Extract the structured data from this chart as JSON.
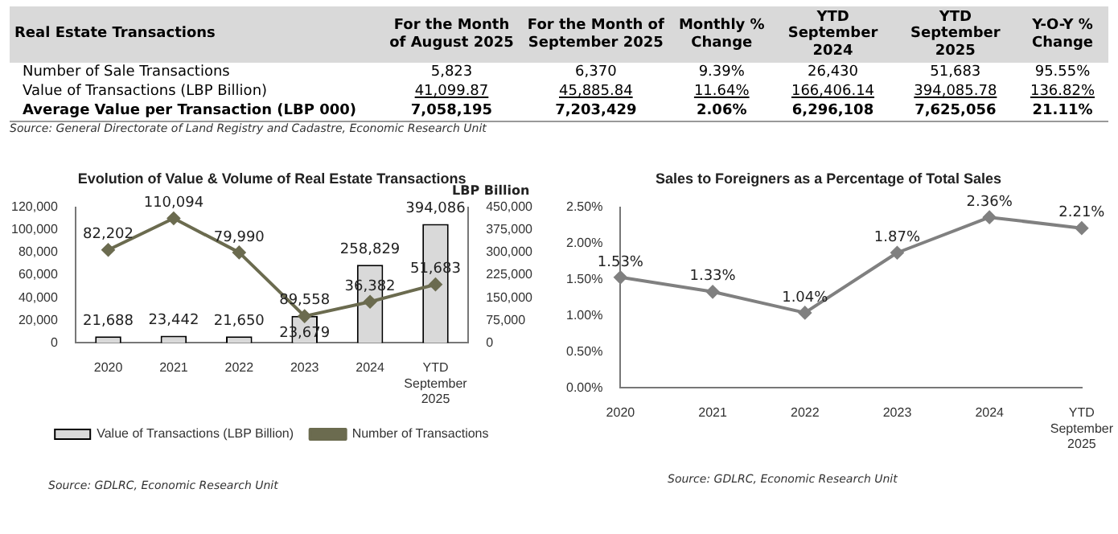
{
  "chart_data": [
    {
      "type": "other",
      "title": "Real Estate Transactions",
      "categories": [
        "Number of Sale Transactions",
        "Value of Transactions (LBP Billion)",
        "Average Value per Transaction (LBP 000)"
      ],
      "series": [
        {
          "name": "For the Month of August 2025",
          "values": [
            5823,
            41099.87,
            7058195
          ],
          "value_labels": [
            "5,823",
            "41,099.87",
            "7,058,195"
          ]
        },
        {
          "name": "For the Month of September 2025",
          "values": [
            6370,
            45885.84,
            7203429
          ],
          "value_labels": [
            "6,370",
            "45,885.84",
            "7,203,429"
          ]
        },
        {
          "name": "Monthly % Change",
          "values": [
            9.39,
            11.64,
            2.06
          ],
          "value_labels": [
            "9.39%",
            "11.64%",
            "2.06%"
          ]
        },
        {
          "name": "YTD September 2024",
          "values": [
            26430,
            166406.14,
            6296108
          ],
          "value_labels": [
            "26,430",
            "166,406.14",
            "6,296,108"
          ]
        },
        {
          "name": "YTD September 2025",
          "values": [
            51683,
            394085.78,
            7625056
          ],
          "value_labels": [
            "51,683",
            "394,085.78",
            "7,625,056"
          ]
        },
        {
          "name": "Y-O-Y % Change",
          "values": [
            95.55,
            136.82,
            21.11
          ],
          "value_labels": [
            "95.55%",
            "136.82%",
            "21.11%"
          ]
        }
      ],
      "annotations": [
        "Source: General Directorate of Land Registry and Cadastre, Economic Research Unit"
      ]
    },
    {
      "type": "bar",
      "title": "Evolution of Value & Volume of Real Estate Transactions",
      "categories": [
        "2020",
        "2021",
        "2022",
        "2023",
        "2024",
        "YTD September 2025"
      ],
      "series": [
        {
          "name": "Value of Transactions (LBP Billion)",
          "color": "#d9d9d9",
          "axis": "y2",
          "values": [
            21688,
            23442,
            21650,
            89558,
            258829,
            394086
          ],
          "value_labels": [
            "21,688",
            "23,442",
            "21,650",
            "89,558",
            "258,829",
            "394,086"
          ]
        },
        {
          "name": "Number of Transactions",
          "type": "line",
          "color": "#6b6b4f",
          "values": [
            82202,
            110094,
            79990,
            23679,
            36382,
            51683
          ],
          "value_labels": [
            "82,202",
            "110,094",
            "79,990",
            "23,679",
            "36,382",
            "51,683"
          ]
        }
      ],
      "ylim": [
        0,
        120000
      ],
      "yticks": [
        {
          "value": 0,
          "label": "0"
        },
        {
          "value": 20000,
          "label": "20,000"
        },
        {
          "value": 40000,
          "label": "40,000"
        },
        {
          "value": 60000,
          "label": "60,000"
        },
        {
          "value": 80000,
          "label": "80,000"
        },
        {
          "value": 100000,
          "label": "100,000"
        },
        {
          "value": 120000,
          "label": "120,000"
        }
      ],
      "y2label": "LBP Billion",
      "y2lim": [
        0,
        450000
      ],
      "y2ticks": [
        {
          "value": 0,
          "label": "0"
        },
        {
          "value": 75000,
          "label": "75,000"
        },
        {
          "value": 150000,
          "label": "150,000"
        },
        {
          "value": 225000,
          "label": "225,000"
        },
        {
          "value": 300000,
          "label": "300,000"
        },
        {
          "value": 375000,
          "label": "375,000"
        },
        {
          "value": 450000,
          "label": "450,000"
        }
      ],
      "marker": "diamond",
      "legend": "bottom",
      "annotations": [
        "Source: GDLRC, Economic Research Unit"
      ]
    },
    {
      "type": "line",
      "title": "Sales to Foreigners as a Percentage of Total Sales",
      "categories": [
        "2020",
        "2021",
        "2022",
        "2023",
        "2024",
        "YTD September 2025"
      ],
      "series": [
        {
          "color": "#808080",
          "values": [
            1.53,
            1.33,
            1.04,
            1.87,
            2.36,
            2.21
          ],
          "value_labels": [
            "1.53%",
            "1.33%",
            "1.04%",
            "1.87%",
            "2.36%",
            "2.21%"
          ]
        }
      ],
      "ylim": [
        0,
        2.5
      ],
      "yticks": [
        {
          "value": 0,
          "label": "0.00%"
        },
        {
          "value": 0.5,
          "label": "0.50%"
        },
        {
          "value": 1,
          "label": "1.00%"
        },
        {
          "value": 1.5,
          "label": "1.50%"
        },
        {
          "value": 2,
          "label": "2.00%"
        },
        {
          "value": 2.5,
          "label": "2.50%"
        }
      ],
      "marker": "diamond",
      "annotations": [
        "Source: GDLRC, Economic Research Unit"
      ]
    }
  ]
}
